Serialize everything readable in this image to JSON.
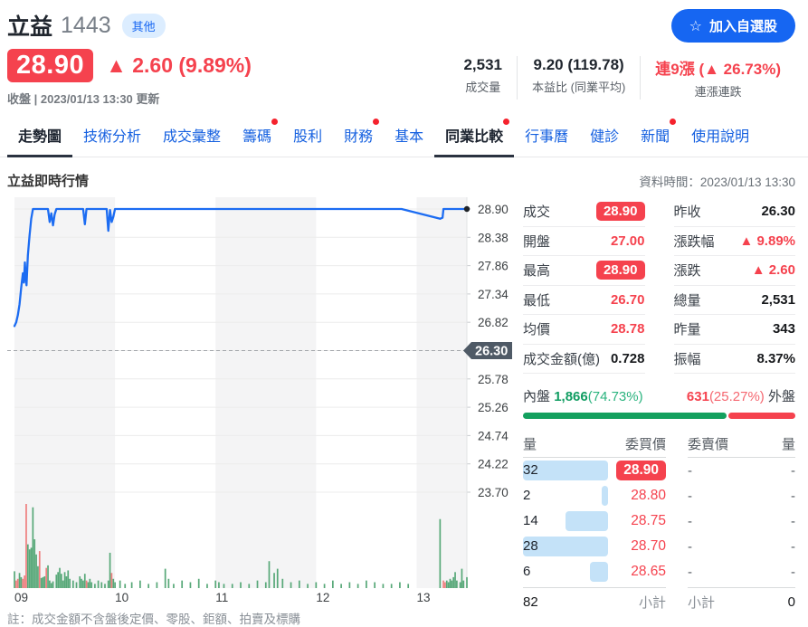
{
  "header": {
    "stock_name": "立益",
    "stock_code": "1443",
    "category_badge": "其他",
    "price": "28.90",
    "change": "▲ 2.60 (9.89%)",
    "update_info": "收盤 | 2023/01/13 13:30 更新",
    "watchlist_button": {
      "icon": "☆",
      "label": "加入自選股"
    },
    "stats": [
      {
        "value": "2,531",
        "label": "成交量",
        "red": false
      },
      {
        "value": "9.20 (119.78)",
        "label": "本益比 (同業平均)",
        "red": false
      },
      {
        "value": "連9漲 (▲ 26.73%)",
        "label": "連漲連跌",
        "red": true
      }
    ]
  },
  "nav": {
    "tabs": [
      {
        "label": "走勢圖",
        "active": true,
        "dot": false
      },
      {
        "label": "技術分析",
        "active": false,
        "dot": false
      },
      {
        "label": "成交彙整",
        "active": false,
        "dot": false
      },
      {
        "label": "籌碼",
        "active": false,
        "dot": true
      },
      {
        "label": "股利",
        "active": false,
        "dot": false
      },
      {
        "label": "財務",
        "active": false,
        "dot": true
      },
      {
        "label": "基本",
        "active": false,
        "dot": false
      },
      {
        "label": "同業比較",
        "active": true,
        "dot": true
      },
      {
        "label": "行事曆",
        "active": false,
        "dot": false
      },
      {
        "label": "健診",
        "active": false,
        "dot": false
      },
      {
        "label": "新聞",
        "active": false,
        "dot": true
      },
      {
        "label": "使用說明",
        "active": false,
        "dot": false
      }
    ]
  },
  "section": {
    "title": "立益即時行情",
    "data_time": "資料時間：2023/01/13 13:30"
  },
  "chart_data": {
    "type": "line",
    "title": "立益即時行情 (intraday price with volume)",
    "x_axis": {
      "labels": [
        "09",
        "10",
        "11",
        "12",
        "13"
      ],
      "range_minutes": [
        0,
        270
      ]
    },
    "y_axis": {
      "labels": [
        "28.90",
        "28.38",
        "27.86",
        "27.34",
        "26.82",
        "26.30",
        "25.78",
        "25.26",
        "24.74",
        "24.22",
        "23.70"
      ],
      "max": 28.9,
      "min": 23.7
    },
    "prev_close": 26.3,
    "prev_close_label": "26.30",
    "line_color": "#1c6cf2",
    "stripe_hours": [
      [
        0,
        60
      ],
      [
        120,
        180
      ],
      [
        240,
        270
      ]
    ],
    "price_points": [
      [
        0,
        26.75
      ],
      [
        1,
        26.82
      ],
      [
        2,
        26.95
      ],
      [
        3,
        27.15
      ],
      [
        4,
        27.45
      ],
      [
        5,
        27.72
      ],
      [
        5.6,
        27.55
      ],
      [
        6.2,
        27.92
      ],
      [
        6.8,
        27.62
      ],
      [
        7.2,
        27.5
      ],
      [
        8,
        28.05
      ],
      [
        9,
        28.42
      ],
      [
        10,
        28.72
      ],
      [
        11,
        28.9
      ],
      [
        20,
        28.9
      ],
      [
        21,
        28.66
      ],
      [
        22,
        28.82
      ],
      [
        23,
        28.6
      ],
      [
        24,
        28.8
      ],
      [
        25,
        28.9
      ],
      [
        41,
        28.9
      ],
      [
        42,
        28.62
      ],
      [
        43,
        28.9
      ],
      [
        55,
        28.9
      ],
      [
        56,
        28.5
      ],
      [
        57,
        28.88
      ],
      [
        58,
        28.66
      ],
      [
        59,
        28.76
      ],
      [
        60,
        28.9
      ],
      [
        231,
        28.9
      ],
      [
        254,
        28.72
      ],
      [
        255.5,
        28.74
      ],
      [
        256,
        28.9
      ],
      [
        270,
        28.9
      ]
    ],
    "volume_bars": [
      [
        0,
        20,
        "g"
      ],
      [
        1,
        9,
        "r"
      ],
      [
        2,
        11,
        "r"
      ],
      [
        3,
        18,
        "g"
      ],
      [
        4,
        13,
        "g"
      ],
      [
        5,
        11,
        "r"
      ],
      [
        6,
        15,
        "r"
      ],
      [
        7,
        100,
        "r"
      ],
      [
        8,
        52,
        "g"
      ],
      [
        9,
        46,
        "g"
      ],
      [
        10,
        48,
        "g"
      ],
      [
        11,
        96,
        "g"
      ],
      [
        12,
        58,
        "g"
      ],
      [
        13,
        40,
        "g"
      ],
      [
        14,
        26,
        "g"
      ],
      [
        15,
        44,
        "r"
      ],
      [
        16,
        12,
        "g"
      ],
      [
        17,
        13,
        "g"
      ],
      [
        18,
        14,
        "g"
      ],
      [
        19,
        24,
        "r"
      ],
      [
        20,
        27,
        "g"
      ],
      [
        21,
        9,
        "g"
      ],
      [
        22,
        6,
        "g"
      ],
      [
        23,
        8,
        "g"
      ],
      [
        25,
        16,
        "g"
      ],
      [
        26,
        19,
        "g"
      ],
      [
        27,
        24,
        "g"
      ],
      [
        28,
        17,
        "g"
      ],
      [
        29,
        9,
        "g"
      ],
      [
        30,
        19,
        "g"
      ],
      [
        31,
        14,
        "g"
      ],
      [
        32,
        21,
        "g"
      ],
      [
        33,
        11,
        "g"
      ],
      [
        35,
        9,
        "g"
      ],
      [
        37,
        7,
        "g"
      ],
      [
        39,
        14,
        "g"
      ],
      [
        40,
        11,
        "g"
      ],
      [
        41,
        9,
        "g"
      ],
      [
        42,
        17,
        "g"
      ],
      [
        43,
        9,
        "r"
      ],
      [
        44,
        7,
        "g"
      ],
      [
        45,
        11,
        "g"
      ],
      [
        46,
        7,
        "g"
      ],
      [
        48,
        5,
        "g"
      ],
      [
        50,
        9,
        "g"
      ],
      [
        52,
        7,
        "g"
      ],
      [
        54,
        5,
        "g"
      ],
      [
        56,
        9,
        "g"
      ],
      [
        57,
        42,
        "g"
      ],
      [
        58,
        18,
        "r"
      ],
      [
        59,
        11,
        "g"
      ],
      [
        60,
        7,
        "g"
      ],
      [
        63,
        9,
        "g"
      ],
      [
        66,
        5,
        "g"
      ],
      [
        70,
        7,
        "g"
      ],
      [
        75,
        9,
        "g"
      ],
      [
        80,
        5,
        "g"
      ],
      [
        85,
        7,
        "g"
      ],
      [
        90,
        23,
        "g"
      ],
      [
        92,
        11,
        "g"
      ],
      [
        95,
        5,
        "g"
      ],
      [
        100,
        9,
        "g"
      ],
      [
        105,
        7,
        "g"
      ],
      [
        110,
        11,
        "g"
      ],
      [
        115,
        5,
        "g"
      ],
      [
        120,
        9,
        "g"
      ],
      [
        122,
        7,
        "g"
      ],
      [
        125,
        5,
        "g"
      ],
      [
        130,
        5,
        "g"
      ],
      [
        135,
        7,
        "g"
      ],
      [
        140,
        5,
        "g"
      ],
      [
        145,
        9,
        "g"
      ],
      [
        150,
        7,
        "g"
      ],
      [
        152,
        32,
        "g"
      ],
      [
        155,
        18,
        "g"
      ],
      [
        157,
        23,
        "g"
      ],
      [
        160,
        11,
        "g"
      ],
      [
        165,
        7,
        "g"
      ],
      [
        170,
        9,
        "g"
      ],
      [
        175,
        5,
        "g"
      ],
      [
        180,
        7,
        "g"
      ],
      [
        185,
        5,
        "g"
      ],
      [
        190,
        9,
        "g"
      ],
      [
        195,
        5,
        "g"
      ],
      [
        200,
        7,
        "g"
      ],
      [
        205,
        5,
        "g"
      ],
      [
        210,
        9,
        "g"
      ],
      [
        215,
        7,
        "g"
      ],
      [
        220,
        5,
        "g"
      ],
      [
        225,
        5,
        "g"
      ],
      [
        230,
        7,
        "g"
      ],
      [
        235,
        5,
        "g"
      ],
      [
        254,
        82,
        "g"
      ],
      [
        256,
        9,
        "r"
      ],
      [
        257,
        7,
        "r"
      ],
      [
        258,
        9,
        "g"
      ],
      [
        259,
        7,
        "g"
      ],
      [
        260,
        11,
        "g"
      ],
      [
        261,
        9,
        "g"
      ],
      [
        262,
        13,
        "g"
      ],
      [
        263,
        19,
        "g"
      ],
      [
        264,
        9,
        "g"
      ],
      [
        266,
        7,
        "g"
      ],
      [
        267,
        23,
        "g"
      ],
      [
        268,
        9,
        "g"
      ],
      [
        270,
        13,
        "g"
      ]
    ],
    "bar_colors": {
      "g": "#57a878",
      "r": "#ee7f7f"
    }
  },
  "quote": {
    "left": [
      {
        "label": "成交",
        "value": "28.90",
        "style": "badge"
      },
      {
        "label": "開盤",
        "value": "27.00",
        "style": "red"
      },
      {
        "label": "最高",
        "value": "28.90",
        "style": "badge"
      },
      {
        "label": "最低",
        "value": "26.70",
        "style": "red"
      },
      {
        "label": "均價",
        "value": "28.78",
        "style": "red"
      },
      {
        "label": "成交金額(億)",
        "value": "0.728",
        "style": "dark"
      }
    ],
    "right": [
      {
        "label": "昨收",
        "value": "26.30",
        "style": "dark"
      },
      {
        "label": "漲跌幅",
        "value": "▲ 9.89%",
        "style": "red"
      },
      {
        "label": "漲跌",
        "value": "▲ 2.60",
        "style": "red"
      },
      {
        "label": "總量",
        "value": "2,531",
        "style": "dark"
      },
      {
        "label": "昨量",
        "value": "343",
        "style": "dark"
      },
      {
        "label": "振幅",
        "value": "8.37%",
        "style": "dark"
      }
    ]
  },
  "orderbook": {
    "inner_label": "內盤",
    "inner_value": "1,866",
    "inner_pct": "(74.73%)",
    "outer_value": "631",
    "outer_pct": "(25.27%)",
    "outer_label": "外盤",
    "inner_ratio_pct": 74.73,
    "headers": {
      "bid_qty": "量",
      "bid_price": "委買價",
      "ask_price": "委賣價",
      "ask_qty": "量"
    },
    "rows": [
      {
        "bid_qty": "32",
        "bid_price": "28.90",
        "badge": true,
        "bar_pct": 100,
        "ask_price": "-",
        "ask_qty": "-"
      },
      {
        "bid_qty": "2",
        "bid_price": "28.80",
        "badge": false,
        "bar_pct": 7,
        "ask_price": "-",
        "ask_qty": "-"
      },
      {
        "bid_qty": "14",
        "bid_price": "28.75",
        "badge": false,
        "bar_pct": 50,
        "ask_price": "-",
        "ask_qty": "-"
      },
      {
        "bid_qty": "28",
        "bid_price": "28.70",
        "badge": false,
        "bar_pct": 100,
        "ask_price": "-",
        "ask_qty": "-"
      },
      {
        "bid_qty": "6",
        "bid_price": "28.65",
        "badge": false,
        "bar_pct": 21,
        "ask_price": "-",
        "ask_qty": "-"
      }
    ],
    "bid_total": "82",
    "subtotal_label": "小計",
    "ask_total": "0"
  },
  "note": "註：成交金額不含盤後定價、零股、鉅額、拍賣及標購"
}
